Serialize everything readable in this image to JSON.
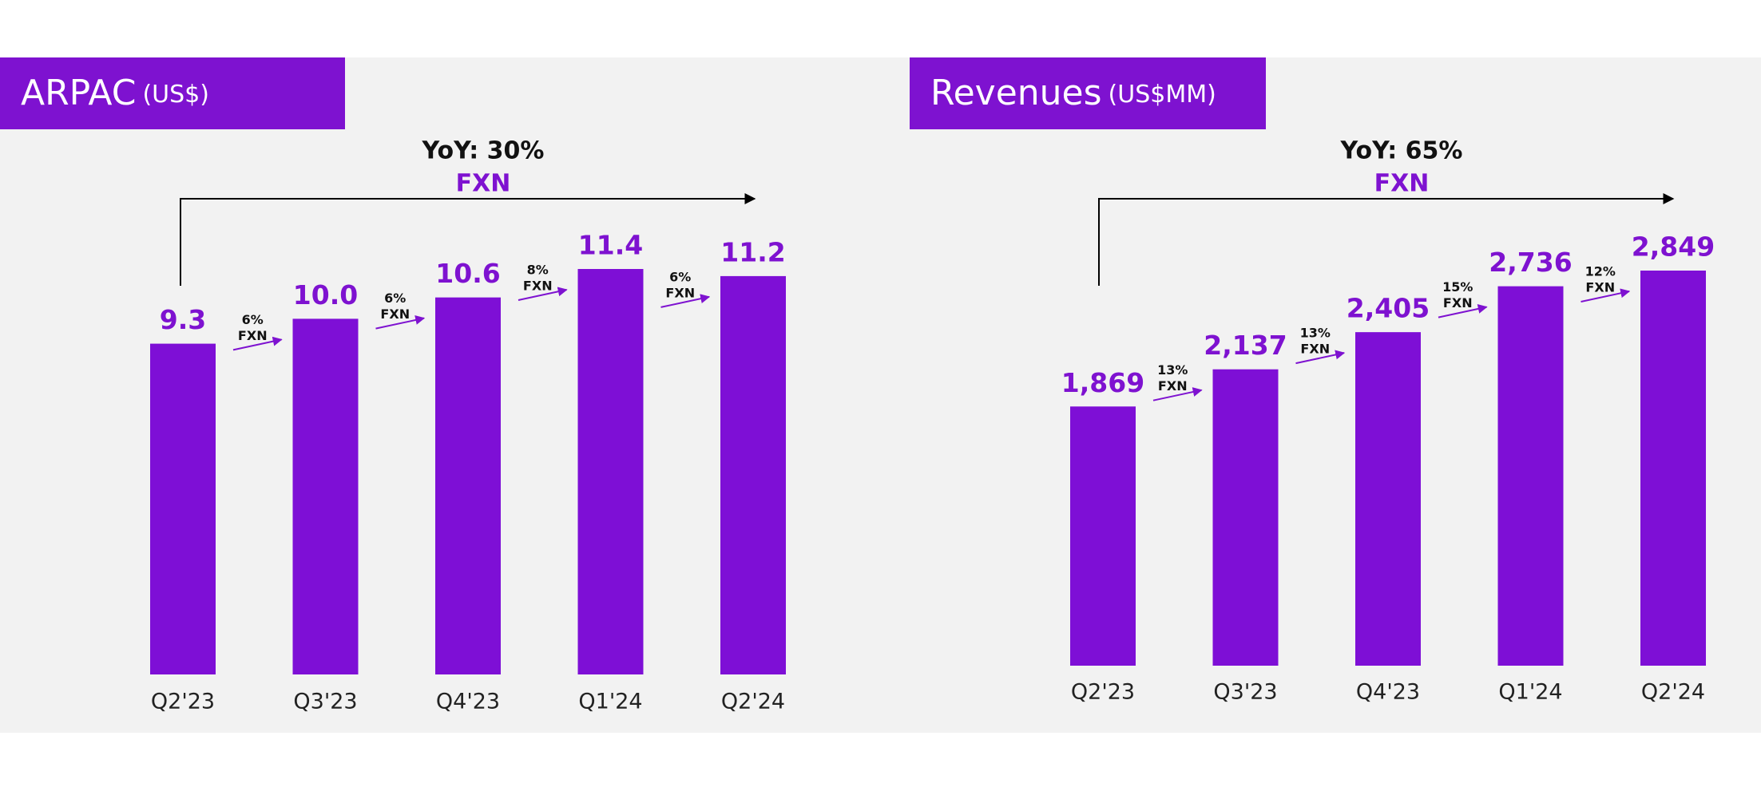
{
  "chart_data": [
    {
      "type": "bar",
      "title": "ARPAC",
      "subtitle": "(US$)",
      "categories": [
        "Q2'23",
        "Q3'23",
        "Q4'23",
        "Q1'24",
        "Q2'24"
      ],
      "values": [
        9.3,
        10.0,
        10.6,
        11.4,
        11.2
      ],
      "value_labels": [
        "9.3",
        "10.0",
        "10.6",
        "11.4",
        "11.2"
      ],
      "color": "#7e0fd6",
      "growth_labels": [
        "6%",
        "6%",
        "8%",
        "6%"
      ],
      "growth_note": "FXN",
      "yoy_label": "YoY: 30%",
      "yoy_note": "FXN"
    },
    {
      "type": "bar",
      "title": "Revenues",
      "subtitle": "(US$MM)",
      "categories": [
        "Q2'23",
        "Q3'23",
        "Q4'23",
        "Q1'24",
        "Q2'24"
      ],
      "values": [
        1869,
        2137,
        2405,
        2736,
        2849
      ],
      "value_labels": [
        "1,869",
        "2,137",
        "2,405",
        "2,736",
        "2,849"
      ],
      "color": "#7e0fd6",
      "growth_labels": [
        "13%",
        "13%",
        "15%",
        "12%"
      ],
      "growth_note": "FXN",
      "yoy_label": "YoY: 65%",
      "yoy_note": "FXN"
    }
  ]
}
